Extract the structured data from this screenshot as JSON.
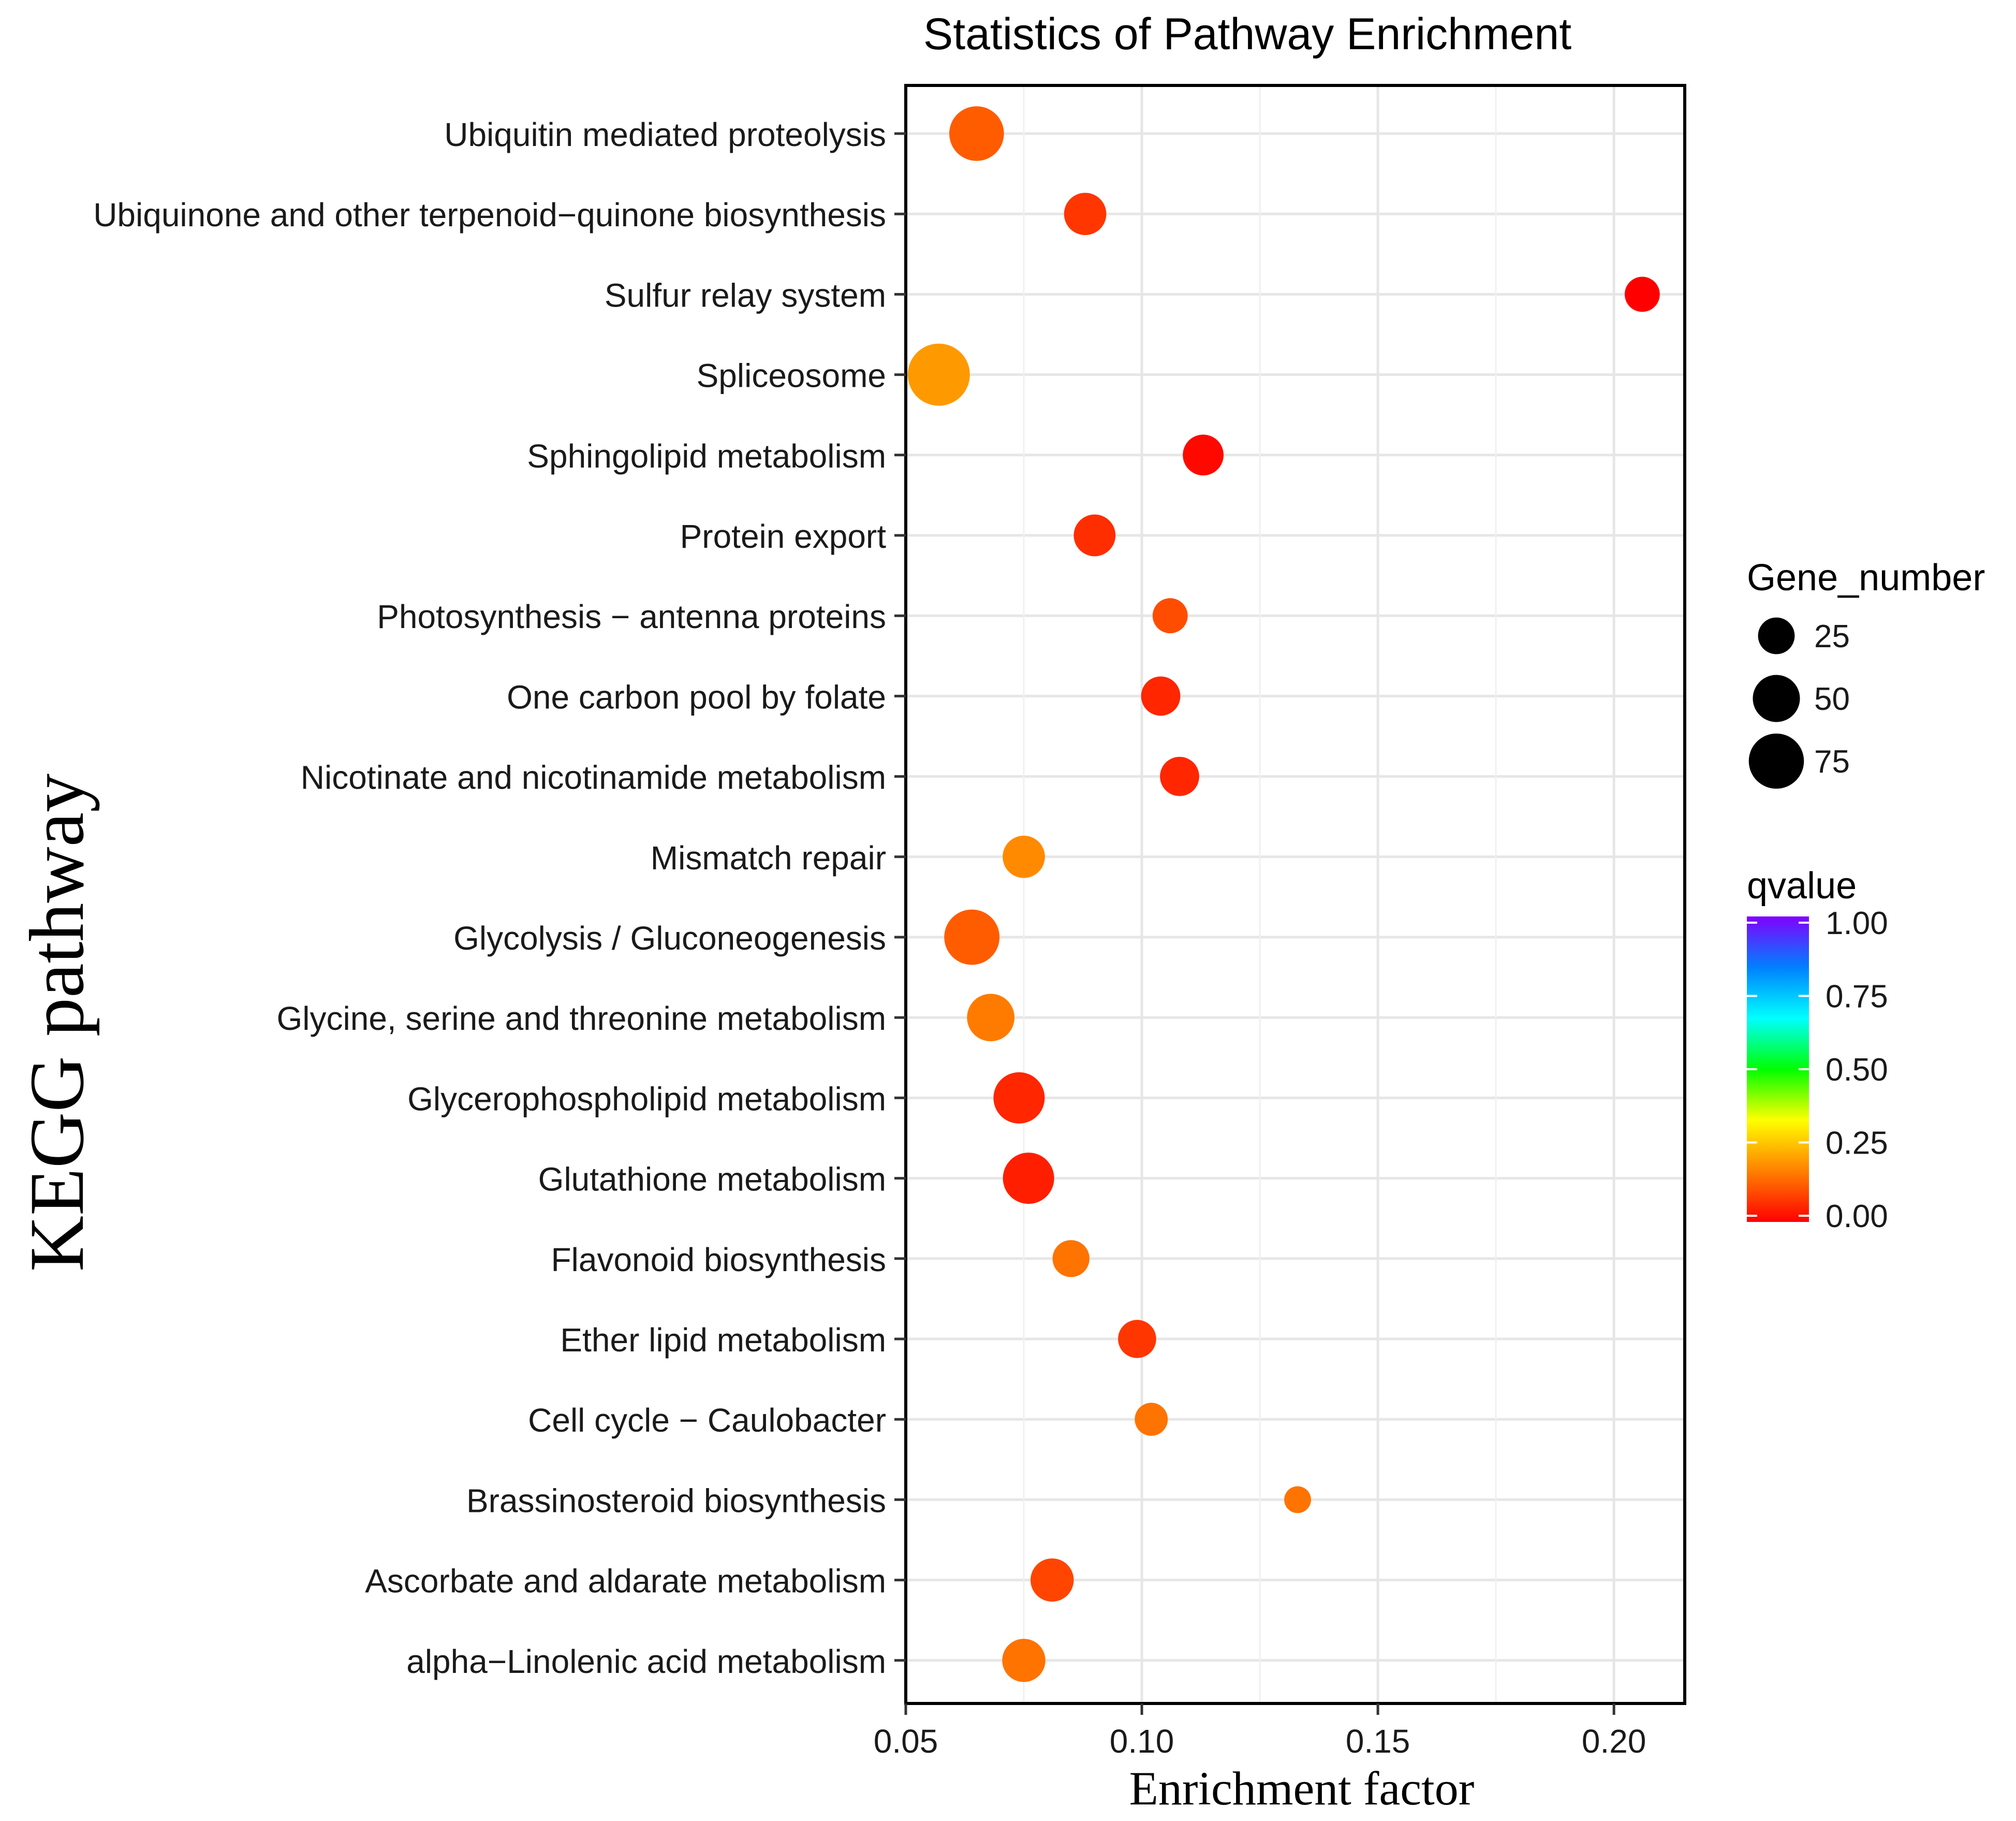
{
  "chart_data": {
    "type": "scatter",
    "title": "Statistics of Pathway Enrichment",
    "xlabel": "Enrichment factor",
    "ylabel": "KEGG pathway",
    "xlim": [
      0.05,
      0.215
    ],
    "x_ticks": [
      "0.05",
      "0.10",
      "0.15",
      "0.20"
    ],
    "x_tick_values": [
      0.05,
      0.1,
      0.15,
      0.2
    ],
    "grid": true,
    "points": [
      {
        "pathway": "Ubiquitin mediated proteolysis",
        "enrichment_factor": 0.065,
        "gene_number": 60,
        "qvalue": 0.12
      },
      {
        "pathway": "Ubiquinone and other terpenoid−quinone biosynthesis",
        "enrichment_factor": 0.088,
        "gene_number": 28,
        "qvalue": 0.07
      },
      {
        "pathway": "Sulfur relay system",
        "enrichment_factor": 0.206,
        "gene_number": 15,
        "qvalue": 0.0
      },
      {
        "pathway": "Spliceosome",
        "enrichment_factor": 0.057,
        "gene_number": 85,
        "qvalue": 0.2
      },
      {
        "pathway": "Sphingolipid metabolism",
        "enrichment_factor": 0.113,
        "gene_number": 25,
        "qvalue": 0.01
      },
      {
        "pathway": "Protein export",
        "enrichment_factor": 0.09,
        "gene_number": 27,
        "qvalue": 0.06
      },
      {
        "pathway": "Photosynthesis − antenna proteins",
        "enrichment_factor": 0.106,
        "gene_number": 15,
        "qvalue": 0.1
      },
      {
        "pathway": "One carbon pool by folate",
        "enrichment_factor": 0.104,
        "gene_number": 22,
        "qvalue": 0.05
      },
      {
        "pathway": "Nicotinate and nicotinamide metabolism",
        "enrichment_factor": 0.108,
        "gene_number": 22,
        "qvalue": 0.05
      },
      {
        "pathway": "Mismatch repair",
        "enrichment_factor": 0.075,
        "gene_number": 28,
        "qvalue": 0.18
      },
      {
        "pathway": "Glycolysis / Gluconeogenesis",
        "enrichment_factor": 0.064,
        "gene_number": 62,
        "qvalue": 0.12
      },
      {
        "pathway": "Glycine, serine and threonine metabolism",
        "enrichment_factor": 0.068,
        "gene_number": 40,
        "qvalue": 0.16
      },
      {
        "pathway": "Glycerophospholipid metabolism",
        "enrichment_factor": 0.074,
        "gene_number": 50,
        "qvalue": 0.05
      },
      {
        "pathway": "Glutathione metabolism",
        "enrichment_factor": 0.076,
        "gene_number": 50,
        "qvalue": 0.04
      },
      {
        "pathway": "Flavonoid biosynthesis",
        "enrichment_factor": 0.085,
        "gene_number": 18,
        "qvalue": 0.15
      },
      {
        "pathway": "Ether lipid metabolism",
        "enrichment_factor": 0.099,
        "gene_number": 20,
        "qvalue": 0.07
      },
      {
        "pathway": "Cell cycle − Caulobacter",
        "enrichment_factor": 0.102,
        "gene_number": 12,
        "qvalue": 0.15
      },
      {
        "pathway": "Brassinosteroid biosynthesis",
        "enrichment_factor": 0.133,
        "gene_number": 5,
        "qvalue": 0.15
      },
      {
        "pathway": "Ascorbate and aldarate metabolism",
        "enrichment_factor": 0.081,
        "gene_number": 30,
        "qvalue": 0.09
      },
      {
        "pathway": "alpha−Linolenic acid metabolism",
        "enrichment_factor": 0.075,
        "gene_number": 30,
        "qvalue": 0.15
      }
    ],
    "size_legend": {
      "title": "Gene_number",
      "items": [
        {
          "label": "25",
          "value": 25
        },
        {
          "label": "50",
          "value": 50
        },
        {
          "label": "75",
          "value": 75
        }
      ]
    },
    "color_legend": {
      "title": "qvalue",
      "ticks": [
        {
          "label": "1.00",
          "value": 1.0
        },
        {
          "label": "0.75",
          "value": 0.75
        },
        {
          "label": "0.50",
          "value": 0.5
        },
        {
          "label": "0.25",
          "value": 0.25
        },
        {
          "label": "0.00",
          "value": 0.0
        }
      ],
      "colors": [
        "#ff0000",
        "#ff8000",
        "#ffff00",
        "#00ff00",
        "#00ffff",
        "#0080ff",
        "#8000ff"
      ]
    }
  }
}
